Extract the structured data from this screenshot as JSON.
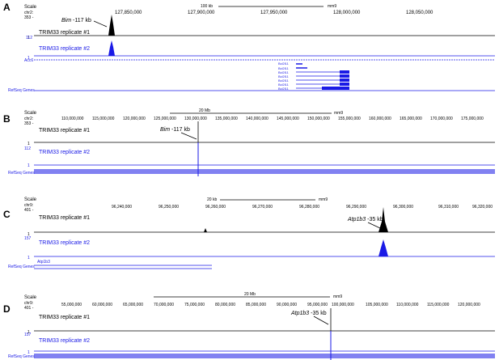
{
  "colors": {
    "black": "#000000",
    "blue": "#1a1ae6",
    "gray": "#7f7f7f"
  },
  "panels": [
    {
      "letter": "A",
      "scale_text": "Scale",
      "chr_text": "chr2:",
      "num_text": "353 -",
      "scalebar_label": "100 kb",
      "assembly": "mm9",
      "ticks": [
        "127,850,000",
        "127,900,000",
        "127,950,000",
        "128,000,000",
        "128,050,000"
      ],
      "annotation": {
        "gene": "Bim",
        "text": "-117 kb"
      },
      "track1": "TRIM33 replicate #1",
      "track2": "TRIM33 replicate #2",
      "track1_min": "1",
      "track2_max": "112",
      "track2_min": "1",
      "acc_label": "Acc6",
      "refseq_label": "RefSeq Genes",
      "gene_labels": [
        "Bcl2l11",
        "Bcl2l11",
        "Bcl2l11",
        "Bcl2l11",
        "Bcl2l11",
        "Bcl2l11",
        "Bcl2l11"
      ]
    },
    {
      "letter": "B",
      "scale_text": "Scale",
      "chr_text": "chr2:",
      "num_text": "353 -",
      "scalebar_label": "20 Mb",
      "assembly": "mm9",
      "ticks": [
        "110,000,000",
        "115,000,000",
        "120,000,000",
        "125,000,000",
        "130,000,000",
        "135,000,000",
        "140,000,000",
        "145,000,000",
        "150,000,000",
        "155,000,000",
        "160,000,000",
        "165,000,000",
        "170,000,000",
        "175,000,000"
      ],
      "annotation": {
        "gene": "Bim",
        "text": "-117 kb"
      },
      "track1": "TRIM33 replicate #1",
      "track2": "TRIM33 replicate #2",
      "track1_min": "1",
      "track2_max": "112",
      "track2_min": "1",
      "refseq_label": "RefSeq Genes"
    },
    {
      "letter": "C",
      "scale_text": "Scale",
      "chr_text": "chr9:",
      "num_text": "401 -",
      "scalebar_label": "20 kb",
      "assembly": "mm9",
      "ticks": [
        "96,240,000",
        "96,250,000",
        "96,260,000",
        "96,270,000",
        "96,280,000",
        "96,290,000",
        "96,300,000",
        "96,310,000",
        "96,320,000"
      ],
      "annotation": {
        "gene": "Atp1b3",
        "text": "-35 kb"
      },
      "track1": "TRIM33 replicate #1",
      "track2": "TRIM33 replicate #2",
      "track1_min": "1",
      "track2_max": "157",
      "track2_min": "1",
      "refseq_label": "RefSeq Genes",
      "gene_label": "Atp1b3"
    },
    {
      "letter": "D",
      "scale_text": "Scale",
      "chr_text": "chr9:",
      "num_text": "401 -",
      "scalebar_label": "20 Mb",
      "assembly": "mm9",
      "ticks": [
        "55,000,000",
        "60,000,000",
        "65,000,000",
        "70,000,000",
        "75,000,000",
        "80,000,000",
        "85,000,000",
        "90,000,000",
        "95,000,000",
        "100,000,000",
        "105,000,000",
        "110,000,000",
        "115,000,000",
        "120,000,000"
      ],
      "annotation": {
        "gene": "Atp1b3",
        "text": "-35 kb"
      },
      "track1": "TRIM33 replicate #1",
      "track2": "TRIM33 replicate #2",
      "track1_min": "1",
      "track2_max": "157",
      "track2_min": "1",
      "refseq_label": "RefSeq Genes"
    }
  ]
}
